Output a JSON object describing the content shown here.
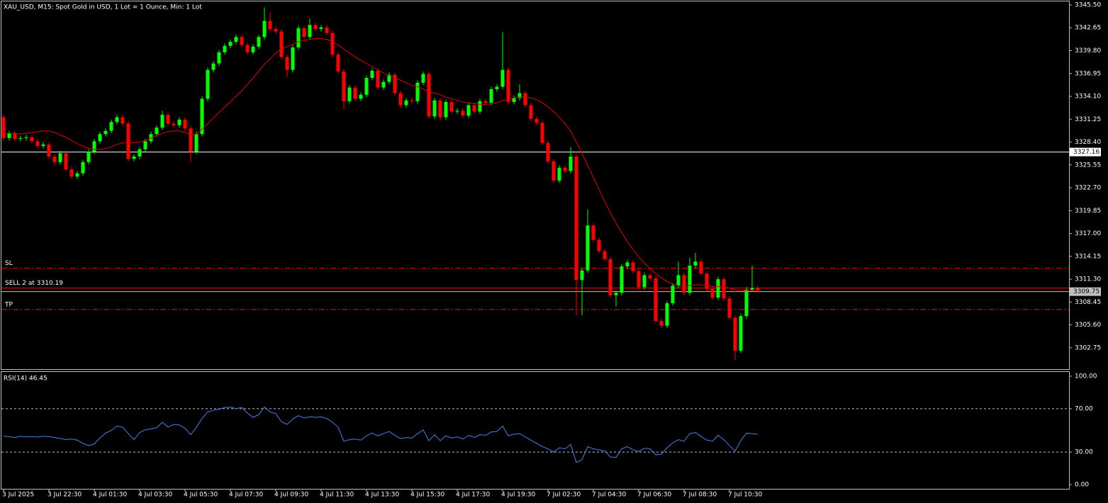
{
  "chart_data": [
    {
      "type": "candlestick",
      "title": "XAU_USD, M15:  Spot Gold in USD, 1 Lot = 1 Ounce, Min: 1 Lot",
      "categories": [
        "3 Jul 2025",
        null,
        null,
        null,
        null,
        null,
        null,
        null,
        "3 Jul 22:30",
        null,
        null,
        null,
        null,
        null,
        null,
        null,
        "4 Jul 01:30",
        null,
        null,
        null,
        null,
        null,
        null,
        null,
        "4 Jul 03:30",
        null,
        null,
        null,
        null,
        null,
        null,
        null,
        "4 Jul 05:30",
        null,
        null,
        null,
        null,
        null,
        null,
        null,
        "4 Jul 07:30",
        null,
        null,
        null,
        null,
        null,
        null,
        null,
        "4 Jul 09:30",
        null,
        null,
        null,
        null,
        null,
        null,
        null,
        "4 Jul 11:30",
        null,
        null,
        null,
        null,
        null,
        null,
        null,
        "4 Jul 13:30",
        null,
        null,
        null,
        null,
        null,
        null,
        null,
        "4 Jul 15:30",
        null,
        null,
        null,
        null,
        null,
        null,
        null,
        "4 Jul 17:30",
        null,
        null,
        null,
        null,
        null,
        null,
        null,
        "4 Jul 19:30",
        null,
        null,
        null,
        null,
        null,
        null,
        null,
        "7 Jul 02:30",
        null,
        null,
        null,
        null,
        null,
        null,
        null,
        "7 Jul 04:30",
        null,
        null,
        null,
        null,
        null,
        null,
        null,
        "7 Jul 06:30",
        null,
        null,
        null,
        null,
        null,
        null,
        null,
        "7 Jul 08:30",
        null,
        null,
        null,
        null,
        null,
        null,
        null,
        "7 Jul 10:30",
        null,
        null,
        null,
        null,
        null
      ],
      "open": [
        3331.5,
        3328.9,
        3329.5,
        3328.8,
        3328.9,
        3329.0,
        3328.5,
        3327.9,
        3328.1,
        3326.6,
        3325.9,
        3327.0,
        3325.0,
        3324.1,
        3324.5,
        3325.9,
        3327.2,
        3328.5,
        3329.4,
        3329.8,
        3330.9,
        3331.5,
        3330.7,
        3326.3,
        3326.6,
        3327.5,
        3328.5,
        3329.4,
        3330.2,
        3331.8,
        3330.7,
        3330.5,
        3331.2,
        3330.1,
        3327.2,
        3329.4,
        3333.8,
        3337.4,
        3338.2,
        3339.6,
        3340.4,
        3340.9,
        3341.5,
        3340.5,
        3339.6,
        3340.3,
        3341.5,
        3343.5,
        3342.5,
        3342.2,
        3339.0,
        3337.4,
        3340.2,
        3342.6,
        3341.5,
        3343.0,
        3342.5,
        3342.7,
        3342.0,
        3339.3,
        3337.2,
        3333.5,
        3335.2,
        3333.8,
        3334.3,
        3336.4,
        3337.3,
        3335.2,
        3335.9,
        3336.8,
        3334.5,
        3333.0,
        3333.6,
        3333.5,
        3335.8,
        3336.9,
        3331.6,
        3333.6,
        3331.5,
        3333.4,
        3332.2,
        3332.3,
        3331.7,
        3333.0,
        3332.2,
        3333.5,
        3333.3,
        3335.0,
        3335.3,
        3337.4,
        3333.4,
        3333.9,
        3334.5,
        3333.0,
        3331.3,
        3330.8,
        3328.3,
        3326.0,
        3323.6,
        3325.2,
        3324.8,
        3326.6,
        3311.2,
        3312.4,
        3318.0,
        3316.2,
        3314.8,
        3313.8,
        3309.3,
        3309.6,
        3312.9,
        3313.4,
        3312.3,
        3310.3,
        3311.8,
        3311.4,
        3306.1,
        3305.5,
        3308.3,
        3310.5,
        3311.8,
        3309.6,
        3313.0,
        3313.5,
        3312.0,
        3310.1,
        3309.0,
        3311.3,
        3308.9,
        3306.5,
        3302.4,
        3306.7,
        3310.0,
        3310.2
      ],
      "high": [
        3331.8,
        3329.8,
        3329.8,
        3329.2,
        3329.3,
        3329.3,
        3328.8,
        3328.4,
        3328.4,
        3326.9,
        3327.3,
        3327.3,
        3325.3,
        3324.8,
        3326.2,
        3327.5,
        3328.8,
        3329.7,
        3330.1,
        3331.2,
        3331.8,
        3331.8,
        3331.0,
        3326.9,
        3327.8,
        3328.8,
        3329.7,
        3330.5,
        3332.3,
        3332.1,
        3331.0,
        3331.5,
        3331.5,
        3330.4,
        3329.7,
        3334.1,
        3337.7,
        3338.5,
        3339.9,
        3340.7,
        3341.2,
        3341.8,
        3341.8,
        3340.8,
        3340.6,
        3341.8,
        3345.2,
        3344.6,
        3342.8,
        3342.5,
        3339.3,
        3340.5,
        3342.9,
        3342.9,
        3343.8,
        3343.3,
        3343.0,
        3343.0,
        3342.3,
        3339.6,
        3337.5,
        3335.5,
        3335.5,
        3334.6,
        3336.7,
        3337.6,
        3337.6,
        3336.2,
        3337.1,
        3337.1,
        3334.8,
        3333.9,
        3333.9,
        3336.1,
        3337.2,
        3337.2,
        3333.9,
        3333.9,
        3333.7,
        3333.7,
        3332.6,
        3332.6,
        3333.3,
        3333.3,
        3333.8,
        3333.8,
        3335.3,
        3335.6,
        3342.1,
        3337.7,
        3334.2,
        3335.6,
        3334.8,
        3333.3,
        3331.6,
        3331.1,
        3328.6,
        3326.3,
        3325.5,
        3325.5,
        3327.8,
        3326.9,
        3312.7,
        3320.0,
        3318.3,
        3316.5,
        3315.1,
        3314.1,
        3309.9,
        3313.2,
        3313.7,
        3313.7,
        3312.6,
        3312.1,
        3312.1,
        3311.7,
        3306.4,
        3308.6,
        3310.8,
        3313.5,
        3312.1,
        3314.0,
        3314.6,
        3313.8,
        3312.3,
        3310.4,
        3311.6,
        3311.6,
        3309.2,
        3306.8,
        3307.0,
        3310.3,
        3313.0,
        3310.5
      ],
      "low": [
        3328.6,
        3328.6,
        3328.5,
        3328.5,
        3328.6,
        3328.2,
        3327.6,
        3327.6,
        3326.3,
        3325.6,
        3325.6,
        3324.7,
        3323.8,
        3323.8,
        3324.2,
        3325.6,
        3326.9,
        3328.2,
        3329.1,
        3329.5,
        3330.6,
        3330.4,
        3326.0,
        3326.0,
        3326.3,
        3327.2,
        3328.2,
        3329.1,
        3329.9,
        3330.4,
        3330.2,
        3330.2,
        3329.8,
        3325.9,
        3326.9,
        3329.1,
        3333.5,
        3337.1,
        3337.9,
        3339.3,
        3340.1,
        3340.6,
        3340.2,
        3339.3,
        3339.3,
        3340.0,
        3341.2,
        3342.2,
        3341.9,
        3338.7,
        3336.5,
        3337.1,
        3339.9,
        3341.2,
        3341.2,
        3342.2,
        3342.2,
        3341.7,
        3339.0,
        3336.9,
        3332.5,
        3333.2,
        3333.5,
        3333.5,
        3334.0,
        3336.1,
        3334.9,
        3334.9,
        3335.6,
        3334.2,
        3332.7,
        3332.7,
        3333.2,
        3333.2,
        3335.5,
        3331.3,
        3331.3,
        3331.2,
        3331.2,
        3331.9,
        3331.9,
        3331.4,
        3331.4,
        3331.9,
        3331.9,
        3333.0,
        3333.0,
        3334.7,
        3335.0,
        3333.1,
        3333.1,
        3333.6,
        3332.7,
        3331.0,
        3330.5,
        3328.0,
        3325.7,
        3323.3,
        3323.3,
        3324.5,
        3324.5,
        3306.8,
        3306.8,
        3312.1,
        3315.9,
        3314.5,
        3313.5,
        3309.0,
        3307.9,
        3309.3,
        3312.6,
        3312.0,
        3310.0,
        3310.0,
        3311.1,
        3305.8,
        3305.2,
        3305.2,
        3308.0,
        3310.2,
        3309.3,
        3309.3,
        3312.7,
        3311.7,
        3309.8,
        3308.7,
        3308.7,
        3308.6,
        3306.2,
        3301.2,
        3302.1,
        3306.4,
        3309.7,
        3309.6
      ],
      "close": [
        3328.9,
        3329.5,
        3328.8,
        3328.9,
        3329.0,
        3328.5,
        3327.9,
        3328.1,
        3326.6,
        3325.9,
        3327.0,
        3325.0,
        3324.1,
        3324.5,
        3325.9,
        3327.2,
        3328.5,
        3329.4,
        3329.8,
        3330.9,
        3331.5,
        3330.7,
        3326.3,
        3326.6,
        3327.5,
        3328.5,
        3329.4,
        3330.2,
        3331.8,
        3330.7,
        3330.5,
        3331.2,
        3330.1,
        3327.2,
        3329.4,
        3333.8,
        3337.4,
        3338.2,
        3339.6,
        3340.4,
        3340.9,
        3341.5,
        3340.5,
        3339.6,
        3340.3,
        3341.5,
        3343.5,
        3342.5,
        3342.2,
        3339.0,
        3337.4,
        3340.2,
        3342.6,
        3341.5,
        3343.0,
        3342.5,
        3342.7,
        3342.0,
        3339.3,
        3337.2,
        3333.5,
        3335.2,
        3333.8,
        3334.3,
        3336.4,
        3337.3,
        3335.2,
        3335.9,
        3336.8,
        3334.5,
        3333.0,
        3333.6,
        3333.5,
        3335.8,
        3336.9,
        3331.6,
        3333.6,
        3331.5,
        3333.4,
        3332.2,
        3332.3,
        3331.7,
        3333.0,
        3332.2,
        3333.5,
        3333.3,
        3335.0,
        3335.3,
        3337.4,
        3333.4,
        3333.9,
        3334.5,
        3333.0,
        3331.3,
        3330.8,
        3328.3,
        3326.0,
        3323.6,
        3325.2,
        3324.8,
        3326.6,
        3311.2,
        3312.4,
        3318.0,
        3316.2,
        3314.8,
        3313.8,
        3309.3,
        3309.6,
        3312.9,
        3313.4,
        3312.3,
        3310.3,
        3311.8,
        3311.4,
        3306.1,
        3305.5,
        3308.3,
        3310.5,
        3311.8,
        3309.6,
        3313.0,
        3313.5,
        3312.0,
        3310.1,
        3309.0,
        3311.3,
        3308.9,
        3306.5,
        3302.4,
        3306.7,
        3310.0,
        3310.2,
        3309.9
      ],
      "up_color": "#00ff00",
      "down_color": "#ff0000",
      "series": [
        {
          "color": "#e00000",
          "values": [
            3329.4,
            3329.5,
            3329.5,
            3329.4,
            3329.5,
            3329.6,
            3329.7,
            3329.8,
            3329.8,
            3329.6,
            3329.3,
            3329.0,
            3328.6,
            3328.2,
            3327.9,
            3327.6,
            3327.5,
            3327.5,
            3327.6,
            3327.8,
            3328.1,
            3328.3,
            3328.3,
            3328.3,
            3328.4,
            3328.6,
            3328.9,
            3329.2,
            3329.5,
            3329.7,
            3329.8,
            3329.8,
            3329.6,
            3329.3,
            3329.4,
            3330.0,
            3330.7,
            3331.4,
            3332.1,
            3332.8,
            3333.4,
            3334.1,
            3334.8,
            3335.6,
            3336.4,
            3337.2,
            3338.1,
            3338.8,
            3339.5,
            3340.0,
            3340.3,
            3340.6,
            3340.9,
            3341.1,
            3341.2,
            3341.3,
            3341.3,
            3341.2,
            3340.9,
            3340.5,
            3340.0,
            3339.5,
            3339.0,
            3338.6,
            3338.2,
            3337.8,
            3337.4,
            3337.0,
            3336.7,
            3336.4,
            3336.1,
            3335.8,
            3335.5,
            3335.3,
            3335.0,
            3334.7,
            3334.5,
            3334.3,
            3334.0,
            3333.8,
            3333.6,
            3333.4,
            3333.3,
            3333.2,
            3333.1,
            3333.1,
            3333.2,
            3333.3,
            3333.6,
            3333.7,
            3333.9,
            3334.0,
            3334.0,
            3333.9,
            3333.7,
            3333.3,
            3332.8,
            3332.2,
            3331.5,
            3330.7,
            3329.8,
            3328.4,
            3327.0,
            3325.5,
            3324.0,
            3322.5,
            3321.0,
            3319.6,
            3318.3,
            3317.1,
            3316.0,
            3315.0,
            3314.1,
            3313.3,
            3312.6,
            3312.0,
            3311.5,
            3311.0,
            3310.7,
            3310.5,
            3310.4,
            3310.5,
            3310.6,
            3310.6,
            3310.5,
            3310.4,
            3310.4,
            3310.3,
            3310.2,
            3310.0,
            3309.9,
            3309.9,
            3309.9,
            3309.9
          ]
        }
      ],
      "levels": [
        {
          "label": "SL",
          "value": 3312.67,
          "color": "#ff0000",
          "style": "dashdot"
        },
        {
          "label": "SELL 2 at 3310.19",
          "value": 3310.19,
          "color": "#ff0000",
          "style": "solid"
        },
        {
          "label": "TP",
          "value": 3307.52,
          "color": "#ff0000",
          "style": "dashdot"
        }
      ],
      "price_lines": [
        {
          "value": 3327.16,
          "color": "#ffffff"
        },
        {
          "value": 3309.75,
          "color": "#c0c0c0"
        }
      ],
      "ylim": [
        3300.09,
        3345.94
      ],
      "yticks": [
        {
          "value": 3345.5,
          "label": "3345.50"
        },
        3342.65,
        3336.95,
        {
          "value": 3339.8,
          "label": "3339.80"
        },
        {
          "value": 3334.1,
          "label": "3334.10"
        },
        3331.25,
        {
          "value": 3328.4,
          "label": "3328.40"
        },
        3325.55,
        {
          "value": 3322.7,
          "label": "3322.70"
        },
        3319.85,
        {
          "value": 3317,
          "label": "3317.00"
        },
        3314.15,
        {
          "value": 3311.3,
          "label": "3311.30"
        },
        3308.45,
        {
          "value": 3305.6,
          "label": "3305.60"
        },
        3302.75
      ]
    },
    {
      "type": "line",
      "title": "RSI(14) 46.45",
      "color": "#4a7fe8",
      "values": [
        44.8,
        44.0,
        43.5,
        44.5,
        44.0,
        44.3,
        43.8,
        44.6,
        44.2,
        43.5,
        42.5,
        41.5,
        42.0,
        41.0,
        38.0,
        36.0,
        37.5,
        43.0,
        47.5,
        50.0,
        54.0,
        53.0,
        47.0,
        41.5,
        48.0,
        50.5,
        51.5,
        52.5,
        57.5,
        53.0,
        55.5,
        55.0,
        52.0,
        46.0,
        53.0,
        61.0,
        67.0,
        68.5,
        69.5,
        71.0,
        71.4,
        70.0,
        71.2,
        66.0,
        62.0,
        64.5,
        71.5,
        67.0,
        65.5,
        58.0,
        55.5,
        60.5,
        63.5,
        61.5,
        62.5,
        62.0,
        62.5,
        61.0,
        57.5,
        53.0,
        40.0,
        41.5,
        42.0,
        41.0,
        45.0,
        47.5,
        45.0,
        47.0,
        49.0,
        45.5,
        42.5,
        43.5,
        43.0,
        47.0,
        50.5,
        40.5,
        46.0,
        40.5,
        45.0,
        43.0,
        44.0,
        42.0,
        45.5,
        43.5,
        46.0,
        45.5,
        48.5,
        49.0,
        54.0,
        45.0,
        46.5,
        47.0,
        44.0,
        41.0,
        38.0,
        35.0,
        33.0,
        30.0,
        34.0,
        33.0,
        37.0,
        20.5,
        23.0,
        35.0,
        33.0,
        32.0,
        31.0,
        25.5,
        25.0,
        33.0,
        35.0,
        32.0,
        30.5,
        33.5,
        33.0,
        27.5,
        28.0,
        34.0,
        38.5,
        41.5,
        40.0,
        47.0,
        48.0,
        44.5,
        41.0,
        40.0,
        45.5,
        41.5,
        36.0,
        31.0,
        40.5,
        47.5,
        47.0,
        46.45
      ],
      "levels": [
        30,
        70
      ],
      "ylim": [
        -3.9,
        103.9
      ],
      "yticks": [
        {
          "value": 100,
          "label": "100.00"
        },
        {
          "value": 70,
          "label": "70.00"
        },
        {
          "value": 30,
          "label": "30.00"
        },
        {
          "value": 0,
          "label": "0.00"
        }
      ]
    }
  ]
}
